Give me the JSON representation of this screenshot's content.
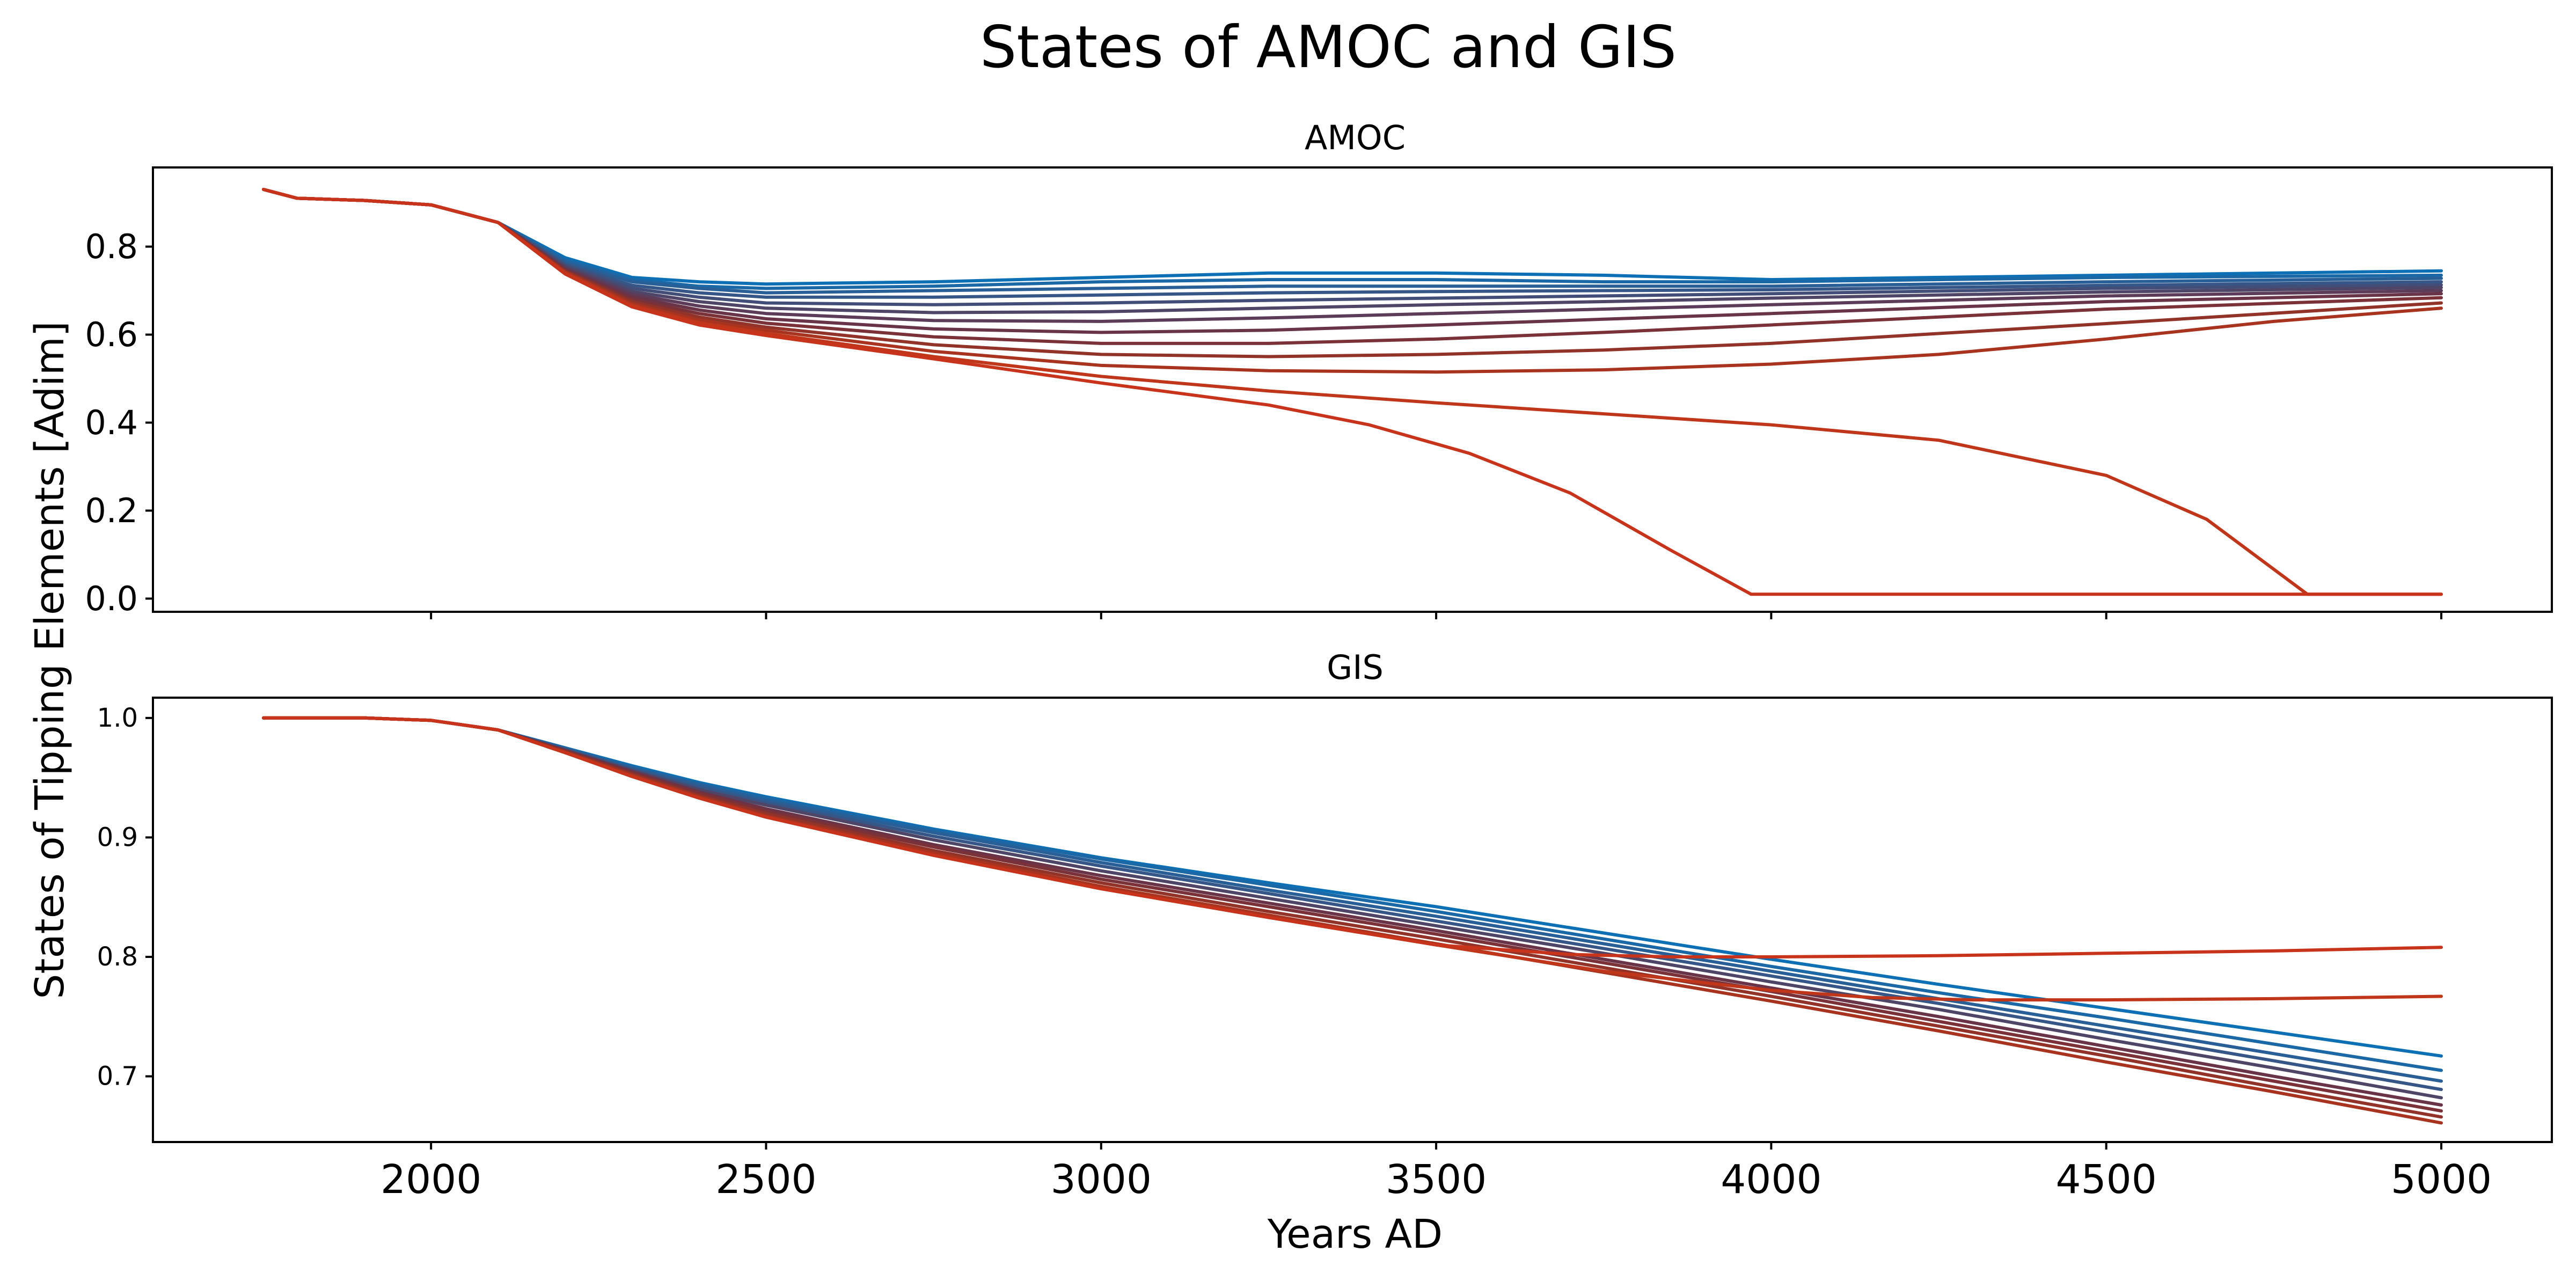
{
  "figure": {
    "title": "States of AMOC and GIS",
    "ylabel": "States of Tipping Elements [Adim]",
    "xlabel": "Years AD"
  },
  "chart_data": [
    {
      "type": "line",
      "title": "AMOC",
      "xlabel": "Years AD",
      "ylabel": "States of Tipping Elements [Adim]",
      "xlim": [
        1585,
        5165
      ],
      "ylim": [
        -0.03,
        0.98
      ],
      "xticks": [
        2000,
        2500,
        3000,
        3500,
        4000,
        4500,
        5000
      ],
      "yticks": [
        0.0,
        0.2,
        0.4,
        0.6,
        0.8
      ],
      "ytick_labels": [
        "0.0",
        "0.2",
        "0.4",
        "0.6",
        "0.8"
      ],
      "grid": false,
      "legend": "none",
      "color_start": "#1f6fb0",
      "color_mid": "#6a2a2a",
      "color_end": "#c8341b",
      "series": [
        {
          "color": "#0d70b5",
          "x": [
            1750,
            1800,
            1900,
            2000,
            2100,
            2200,
            2300,
            2400,
            2500,
            2750,
            3000,
            3250,
            3500,
            3750,
            4000,
            4500,
            5000
          ],
          "y": [
            0.93,
            0.91,
            0.905,
            0.895,
            0.855,
            0.775,
            0.73,
            0.72,
            0.715,
            0.72,
            0.73,
            0.74,
            0.74,
            0.735,
            0.725,
            0.735,
            0.745
          ]
        },
        {
          "color": "#1b68a6",
          "x": [
            1750,
            1800,
            1900,
            2000,
            2100,
            2200,
            2300,
            2400,
            2500,
            2750,
            3000,
            3250,
            3500,
            3750,
            4000,
            4500,
            5000
          ],
          "y": [
            0.93,
            0.91,
            0.905,
            0.895,
            0.855,
            0.77,
            0.725,
            0.71,
            0.705,
            0.71,
            0.72,
            0.725,
            0.725,
            0.72,
            0.72,
            0.73,
            0.735
          ]
        },
        {
          "color": "#285f96",
          "x": [
            1750,
            1800,
            1900,
            2000,
            2100,
            2200,
            2300,
            2400,
            2500,
            2750,
            3000,
            3250,
            3500,
            3750,
            4000,
            4500,
            5000
          ],
          "y": [
            0.93,
            0.91,
            0.905,
            0.895,
            0.855,
            0.765,
            0.72,
            0.705,
            0.695,
            0.7,
            0.705,
            0.71,
            0.71,
            0.71,
            0.71,
            0.72,
            0.728
          ]
        },
        {
          "color": "#355686",
          "x": [
            1750,
            1800,
            1900,
            2000,
            2100,
            2200,
            2300,
            2400,
            2500,
            2750,
            3000,
            3250,
            3500,
            3750,
            4000,
            4500,
            5000
          ],
          "y": [
            0.93,
            0.91,
            0.905,
            0.895,
            0.855,
            0.76,
            0.712,
            0.695,
            0.685,
            0.685,
            0.69,
            0.695,
            0.698,
            0.7,
            0.702,
            0.712,
            0.72
          ]
        },
        {
          "color": "#424e77",
          "x": [
            1750,
            1800,
            1900,
            2000,
            2100,
            2200,
            2300,
            2400,
            2500,
            2750,
            3000,
            3250,
            3500,
            3750,
            4000,
            4500,
            5000
          ],
          "y": [
            0.93,
            0.91,
            0.905,
            0.895,
            0.855,
            0.757,
            0.705,
            0.685,
            0.672,
            0.668,
            0.672,
            0.678,
            0.683,
            0.688,
            0.693,
            0.705,
            0.713
          ]
        },
        {
          "color": "#4f4567",
          "x": [
            1750,
            1800,
            1900,
            2000,
            2100,
            2200,
            2300,
            2400,
            2500,
            2750,
            3000,
            3250,
            3500,
            3750,
            4000,
            4500,
            5000
          ],
          "y": [
            0.93,
            0.91,
            0.905,
            0.895,
            0.855,
            0.754,
            0.698,
            0.675,
            0.66,
            0.65,
            0.652,
            0.66,
            0.668,
            0.675,
            0.683,
            0.697,
            0.707
          ]
        },
        {
          "color": "#5c3c58",
          "x": [
            1750,
            1800,
            1900,
            2000,
            2100,
            2200,
            2300,
            2400,
            2500,
            2750,
            3000,
            3250,
            3500,
            3750,
            4000,
            4500,
            5000
          ],
          "y": [
            0.93,
            0.91,
            0.905,
            0.895,
            0.855,
            0.751,
            0.692,
            0.665,
            0.648,
            0.632,
            0.63,
            0.638,
            0.648,
            0.658,
            0.668,
            0.688,
            0.7
          ]
        },
        {
          "color": "#693448",
          "x": [
            1750,
            1800,
            1900,
            2000,
            2100,
            2200,
            2300,
            2400,
            2500,
            2750,
            3000,
            3250,
            3500,
            3750,
            4000,
            4500,
            5000
          ],
          "y": [
            0.93,
            0.91,
            0.905,
            0.895,
            0.855,
            0.748,
            0.686,
            0.656,
            0.636,
            0.613,
            0.605,
            0.61,
            0.622,
            0.635,
            0.648,
            0.675,
            0.693
          ]
        },
        {
          "color": "#7a3138",
          "x": [
            1750,
            1800,
            1900,
            2000,
            2100,
            2200,
            2300,
            2400,
            2500,
            2750,
            3000,
            3250,
            3500,
            3750,
            4000,
            4500,
            5000
          ],
          "y": [
            0.93,
            0.91,
            0.905,
            0.895,
            0.855,
            0.746,
            0.68,
            0.648,
            0.626,
            0.595,
            0.58,
            0.58,
            0.59,
            0.605,
            0.622,
            0.658,
            0.684
          ]
        },
        {
          "color": "#913328",
          "x": [
            1750,
            1800,
            1900,
            2000,
            2100,
            2200,
            2300,
            2400,
            2500,
            2750,
            3000,
            3250,
            3500,
            3750,
            4000,
            4500,
            5000
          ],
          "y": [
            0.93,
            0.91,
            0.905,
            0.895,
            0.855,
            0.744,
            0.675,
            0.64,
            0.617,
            0.577,
            0.555,
            0.55,
            0.555,
            0.565,
            0.58,
            0.625,
            0.672
          ]
        },
        {
          "color": "#a8341f",
          "x": [
            1750,
            1800,
            1900,
            2000,
            2100,
            2200,
            2300,
            2400,
            2500,
            2750,
            3000,
            3250,
            3500,
            3750,
            4000,
            4250,
            4500,
            4750,
            5000
          ],
          "y": [
            0.93,
            0.91,
            0.905,
            0.895,
            0.855,
            0.742,
            0.67,
            0.633,
            0.61,
            0.562,
            0.53,
            0.518,
            0.515,
            0.52,
            0.533,
            0.555,
            0.59,
            0.63,
            0.66
          ]
        },
        {
          "color": "#c0361a",
          "x": [
            1750,
            1800,
            1900,
            2000,
            2100,
            2200,
            2300,
            2400,
            2500,
            2750,
            3000,
            3250,
            3500,
            3750,
            4000,
            4250,
            4500,
            4650,
            4800,
            4900,
            5000
          ],
          "y": [
            0.93,
            0.91,
            0.905,
            0.895,
            0.855,
            0.74,
            0.666,
            0.627,
            0.603,
            0.55,
            0.505,
            0.472,
            0.445,
            0.42,
            0.395,
            0.36,
            0.28,
            0.18,
            0.01,
            0.01,
            0.01
          ]
        },
        {
          "color": "#c8341b",
          "x": [
            1750,
            1800,
            1900,
            2000,
            2100,
            2200,
            2300,
            2400,
            2500,
            2750,
            3000,
            3250,
            3400,
            3550,
            3700,
            3850,
            3970,
            4200,
            4500,
            5000
          ],
          "y": [
            0.93,
            0.91,
            0.905,
            0.895,
            0.855,
            0.738,
            0.663,
            0.622,
            0.598,
            0.545,
            0.49,
            0.44,
            0.395,
            0.33,
            0.24,
            0.11,
            0.01,
            0.01,
            0.01,
            0.01
          ]
        }
      ]
    },
    {
      "type": "line",
      "title": "GIS",
      "xlabel": "Years AD",
      "ylabel": "States of Tipping Elements [Adim]",
      "xlim": [
        1585,
        5165
      ],
      "ylim": [
        0.645,
        1.017
      ],
      "xticks": [
        2000,
        2500,
        3000,
        3500,
        4000,
        4500,
        5000
      ],
      "xtick_labels": [
        "2000",
        "2500",
        "3000",
        "3500",
        "4000",
        "4500",
        "5000"
      ],
      "yticks": [
        0.7,
        0.8,
        0.9,
        1.0
      ],
      "ytick_labels": [
        "0.7",
        "0.8",
        "0.9",
        "1.0"
      ],
      "grid": false,
      "legend": "none",
      "series": [
        {
          "color": "#0d70b5",
          "x": [
            1750,
            1900,
            2000,
            2100,
            2200,
            2300,
            2400,
            2500,
            2750,
            3000,
            3250,
            3500,
            3750,
            4000,
            4250,
            4500,
            4750,
            5000
          ],
          "y": [
            1.0,
            1.0,
            0.998,
            0.99,
            0.975,
            0.96,
            0.946,
            0.934,
            0.907,
            0.883,
            0.862,
            0.842,
            0.82,
            0.798,
            0.777,
            0.757,
            0.737,
            0.717
          ]
        },
        {
          "color": "#1b68a6",
          "x": [
            1750,
            1900,
            2000,
            2100,
            2200,
            2300,
            2400,
            2500,
            2750,
            3000,
            3250,
            3500,
            3750,
            4000,
            4250,
            4500,
            4750,
            5000
          ],
          "y": [
            1.0,
            1.0,
            0.998,
            0.99,
            0.975,
            0.959,
            0.945,
            0.933,
            0.906,
            0.882,
            0.86,
            0.838,
            0.815,
            0.792,
            0.77,
            0.749,
            0.727,
            0.705
          ]
        },
        {
          "color": "#285f96",
          "x": [
            1750,
            1900,
            2000,
            2100,
            2200,
            2300,
            2400,
            2500,
            2750,
            3000,
            3250,
            3500,
            3750,
            4000,
            4250,
            4500,
            4750,
            5000
          ],
          "y": [
            1.0,
            1.0,
            0.998,
            0.99,
            0.974,
            0.958,
            0.944,
            0.931,
            0.904,
            0.879,
            0.856,
            0.834,
            0.811,
            0.788,
            0.765,
            0.742,
            0.719,
            0.696
          ]
        },
        {
          "color": "#355686",
          "x": [
            1750,
            1900,
            2000,
            2100,
            2200,
            2300,
            2400,
            2500,
            2750,
            3000,
            3250,
            3500,
            3750,
            4000,
            4250,
            4500,
            4750,
            5000
          ],
          "y": [
            1.0,
            1.0,
            0.998,
            0.99,
            0.974,
            0.957,
            0.942,
            0.929,
            0.901,
            0.876,
            0.853,
            0.83,
            0.807,
            0.784,
            0.761,
            0.737,
            0.713,
            0.689
          ]
        },
        {
          "color": "#4f4567",
          "x": [
            1750,
            1900,
            2000,
            2100,
            2200,
            2300,
            2400,
            2500,
            2750,
            3000,
            3250,
            3500,
            3750,
            4000,
            4250,
            4500,
            4750,
            5000
          ],
          "y": [
            1.0,
            1.0,
            0.998,
            0.99,
            0.973,
            0.956,
            0.94,
            0.927,
            0.898,
            0.872,
            0.849,
            0.826,
            0.803,
            0.779,
            0.756,
            0.731,
            0.707,
            0.682
          ]
        },
        {
          "color": "#693448",
          "x": [
            1750,
            1900,
            2000,
            2100,
            2200,
            2300,
            2400,
            2500,
            2750,
            3000,
            3250,
            3500,
            3750,
            4000,
            4250,
            4500,
            4750,
            5000
          ],
          "y": [
            1.0,
            1.0,
            0.998,
            0.99,
            0.973,
            0.955,
            0.938,
            0.924,
            0.894,
            0.868,
            0.845,
            0.822,
            0.798,
            0.774,
            0.75,
            0.725,
            0.7,
            0.676
          ]
        },
        {
          "color": "#7a3138",
          "x": [
            1750,
            1900,
            2000,
            2100,
            2200,
            2300,
            2400,
            2500,
            2750,
            3000,
            3250,
            3500,
            3750,
            4000,
            4250,
            4500,
            4750,
            5000
          ],
          "y": [
            1.0,
            1.0,
            0.998,
            0.99,
            0.972,
            0.954,
            0.937,
            0.922,
            0.892,
            0.865,
            0.842,
            0.819,
            0.795,
            0.771,
            0.746,
            0.721,
            0.696,
            0.671
          ]
        },
        {
          "color": "#913328",
          "x": [
            1750,
            1900,
            2000,
            2100,
            2200,
            2300,
            2400,
            2500,
            2750,
            3000,
            3250,
            3500,
            3750,
            4000,
            4250,
            4500,
            4750,
            5000
          ],
          "y": [
            1.0,
            1.0,
            0.998,
            0.99,
            0.972,
            0.953,
            0.935,
            0.92,
            0.889,
            0.862,
            0.838,
            0.815,
            0.791,
            0.767,
            0.742,
            0.717,
            0.691,
            0.666
          ]
        },
        {
          "color": "#a8341f",
          "x": [
            1750,
            1900,
            2000,
            2100,
            2200,
            2300,
            2400,
            2500,
            2750,
            3000,
            3250,
            3500,
            3750,
            4000,
            4250,
            4500,
            4750,
            5000
          ],
          "y": [
            1.0,
            1.0,
            0.998,
            0.99,
            0.971,
            0.952,
            0.934,
            0.918,
            0.887,
            0.859,
            0.835,
            0.811,
            0.787,
            0.763,
            0.738,
            0.712,
            0.687,
            0.661
          ]
        },
        {
          "color": "#c0361a",
          "x": [
            1750,
            1900,
            2000,
            2100,
            2200,
            2300,
            2400,
            2500,
            2750,
            3000,
            3250,
            3500,
            3750,
            4000,
            4150,
            4300,
            4500,
            4750,
            5000
          ],
          "y": [
            1.0,
            1.0,
            0.998,
            0.99,
            0.971,
            0.951,
            0.933,
            0.917,
            0.885,
            0.857,
            0.833,
            0.81,
            0.788,
            0.772,
            0.766,
            0.764,
            0.764,
            0.765,
            0.767
          ]
        },
        {
          "color": "#c8341b",
          "x": [
            1750,
            1900,
            2000,
            2100,
            2200,
            2300,
            2400,
            2500,
            2750,
            3000,
            3250,
            3500,
            3700,
            3850,
            4000,
            4250,
            4500,
            4750,
            5000
          ],
          "y": [
            1.0,
            1.0,
            0.998,
            0.99,
            0.971,
            0.951,
            0.933,
            0.917,
            0.885,
            0.857,
            0.833,
            0.81,
            0.802,
            0.8,
            0.8,
            0.801,
            0.803,
            0.805,
            0.808
          ]
        }
      ]
    }
  ]
}
